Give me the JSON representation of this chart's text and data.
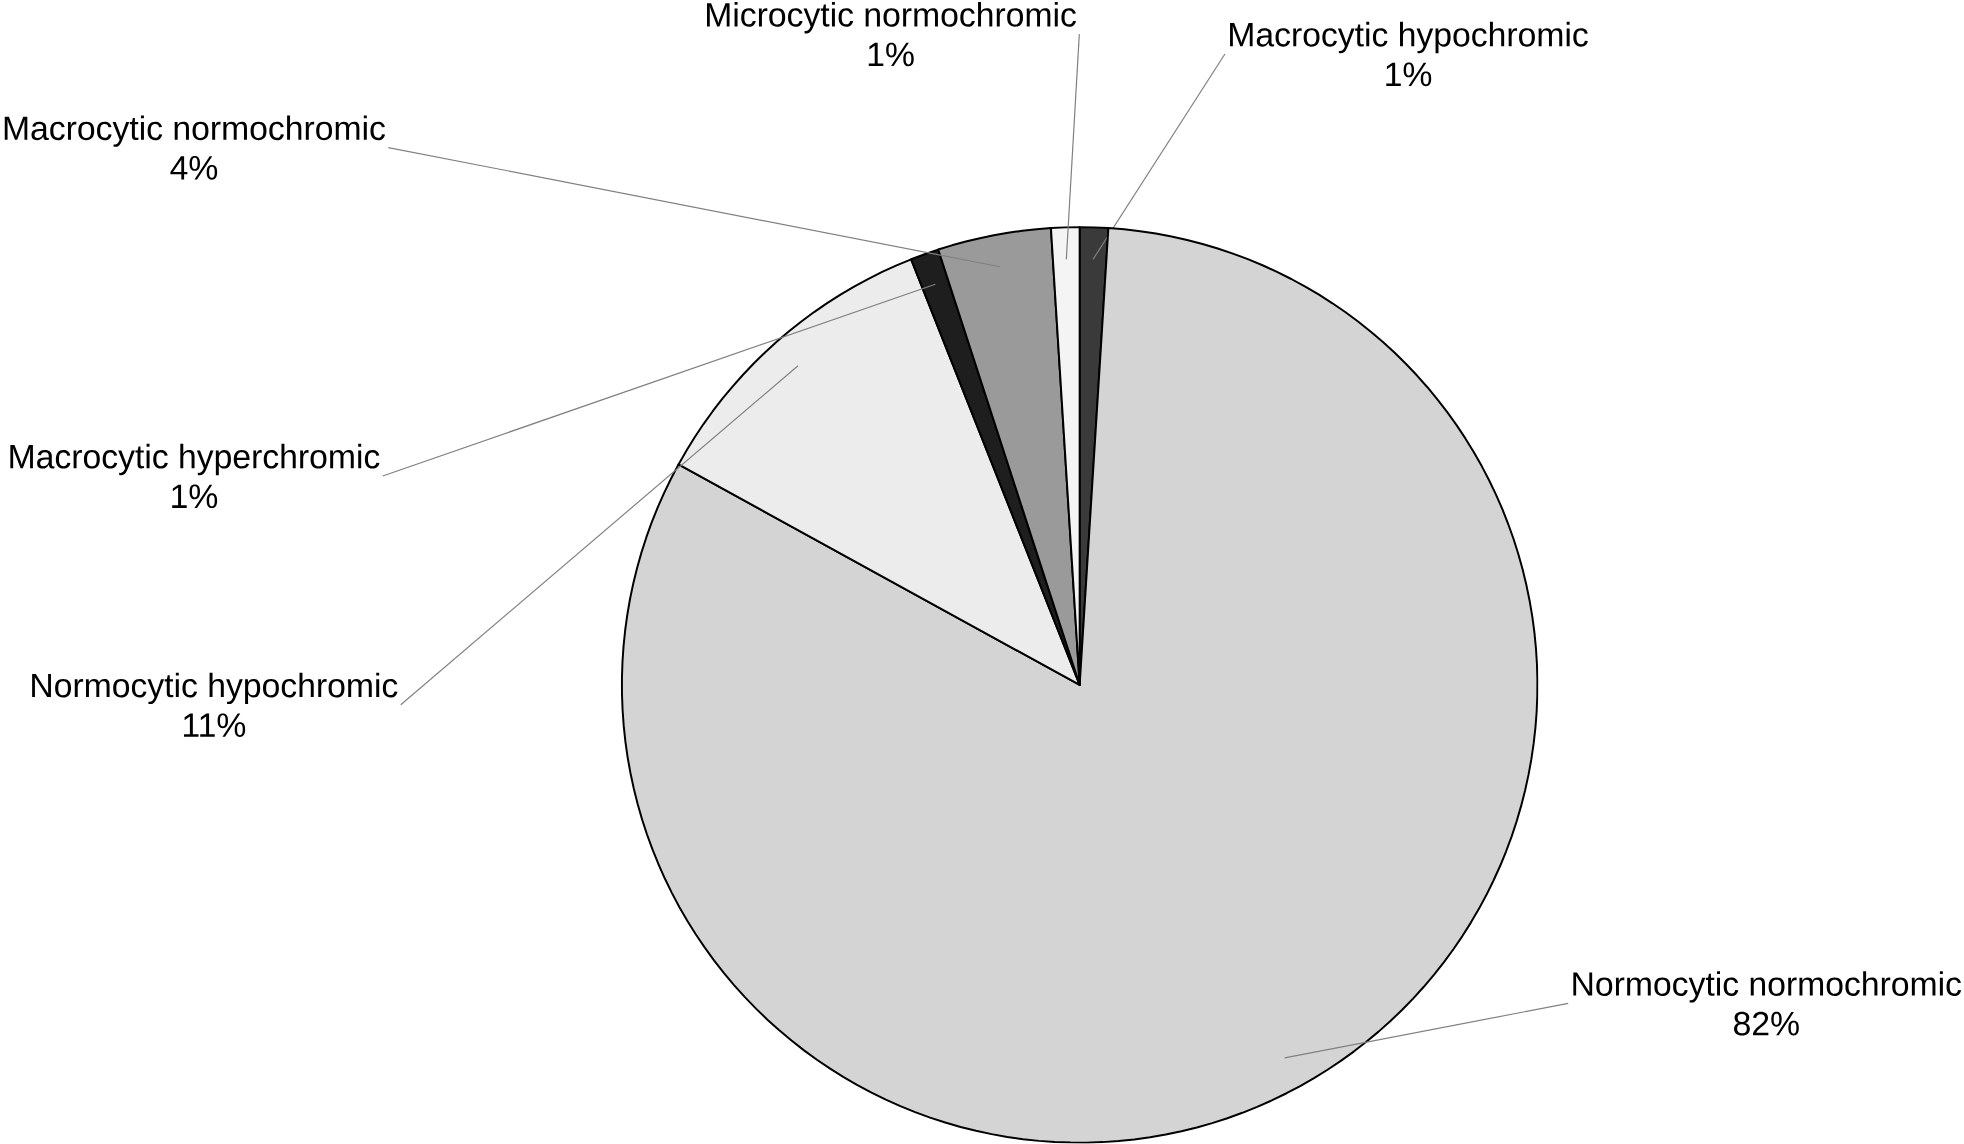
{
  "chart_data": {
    "type": "pie",
    "categories": [
      "Macrocytic hypochromic",
      "Normocytic normochromic",
      "Normocytic hypochromic",
      "Macrocytic hyperchromic",
      "Macrocytic normochromic",
      "Microcytic normochromic"
    ],
    "values": [
      1,
      82,
      11,
      1,
      4,
      1
    ],
    "colors": [
      "#3a3a3a",
      "#d4d4d4",
      "#ececec",
      "#1e1e1e",
      "#9a9a9a",
      "#f4f4f4"
    ],
    "value_labels": [
      "1%",
      "82%",
      "11%",
      "1%",
      "4%",
      "1%"
    ]
  }
}
